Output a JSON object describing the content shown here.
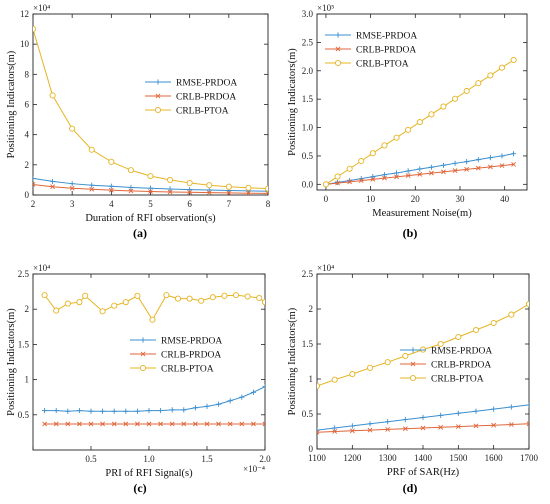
{
  "colors": {
    "rmse": "#3a8fd0",
    "crlb_prdoa": "#e0663a",
    "crlb_ptoa": "#e6b422"
  },
  "chart_data": [
    {
      "type": "line",
      "caption": "(a)",
      "xlabel": "Duration of RFI observation(s)",
      "ylabel": "Positioning Indicators(m)",
      "y_exponent_label": "×10⁴",
      "xlim": [
        2,
        8
      ],
      "ylim": [
        0,
        12
      ],
      "xticks": [
        2,
        3,
        4,
        5,
        6,
        7,
        8
      ],
      "yticks": [
        0,
        2,
        4,
        6,
        8,
        10,
        12
      ],
      "legend": "center-right",
      "series": [
        {
          "name": "RMSE-PRDOA",
          "marker": "plus",
          "color_key": "rmse",
          "x": [
            2,
            2.5,
            3,
            3.5,
            4,
            4.5,
            5,
            5.5,
            6,
            6.5,
            7,
            7.5,
            8
          ],
          "y": [
            1.1,
            0.9,
            0.75,
            0.65,
            0.58,
            0.5,
            0.45,
            0.4,
            0.36,
            0.33,
            0.3,
            0.27,
            0.25
          ]
        },
        {
          "name": "CRLB-PRDOA",
          "marker": "x",
          "color_key": "crlb_prdoa",
          "x": [
            2,
            2.5,
            3,
            3.5,
            4,
            4.5,
            5,
            5.5,
            6,
            6.5,
            7,
            7.5,
            8
          ],
          "y": [
            0.7,
            0.55,
            0.45,
            0.38,
            0.32,
            0.27,
            0.23,
            0.2,
            0.18,
            0.16,
            0.14,
            0.12,
            0.11
          ]
        },
        {
          "name": "CRLB-PTOA",
          "marker": "circle",
          "color_key": "crlb_ptoa",
          "x": [
            2,
            2.5,
            3,
            3.5,
            4,
            4.5,
            5,
            5.5,
            6,
            6.5,
            7,
            7.5,
            8
          ],
          "y": [
            11.0,
            6.6,
            4.4,
            3.0,
            2.2,
            1.65,
            1.25,
            1.0,
            0.8,
            0.65,
            0.55,
            0.48,
            0.42
          ]
        }
      ]
    },
    {
      "type": "line",
      "caption": "(b)",
      "xlabel": "Measurement Noise(m)",
      "ylabel": "Positioning Indicators(m)",
      "y_exponent_label": "×10⁵",
      "xlim": [
        -2,
        45
      ],
      "ylim": [
        -0.1,
        3.0
      ],
      "xticks": [
        0,
        10,
        20,
        30,
        40
      ],
      "yticks": [
        0,
        0.5,
        1,
        1.5,
        2,
        2.5,
        3
      ],
      "ytick_labels": [
        "0.0",
        "0.5",
        "1.0",
        "1.5",
        "2.0",
        "2.5",
        "3.0"
      ],
      "legend": "top-left",
      "series": [
        {
          "name": "RMSE-PRDOA",
          "marker": "plus",
          "color_key": "rmse",
          "x": [
            0,
            2.6,
            5.3,
            7.9,
            10.5,
            13.1,
            15.8,
            18.4,
            21,
            23.6,
            26.3,
            28.9,
            31.5,
            34.1,
            36.8,
            39.4,
            42
          ],
          "y": [
            0,
            0.033,
            0.067,
            0.1,
            0.135,
            0.17,
            0.2,
            0.235,
            0.27,
            0.3,
            0.335,
            0.37,
            0.4,
            0.435,
            0.47,
            0.5,
            0.54
          ]
        },
        {
          "name": "CRLB-PRDOA",
          "marker": "x",
          "color_key": "crlb_prdoa",
          "x": [
            0,
            2.6,
            5.3,
            7.9,
            10.5,
            13.1,
            15.8,
            18.4,
            21,
            23.6,
            26.3,
            28.9,
            31.5,
            34.1,
            36.8,
            39.4,
            42
          ],
          "y": [
            0,
            0.022,
            0.044,
            0.066,
            0.088,
            0.11,
            0.132,
            0.154,
            0.176,
            0.198,
            0.22,
            0.242,
            0.264,
            0.286,
            0.308,
            0.33,
            0.352
          ]
        },
        {
          "name": "CRLB-PTOA",
          "marker": "circle",
          "color_key": "crlb_ptoa",
          "x": [
            0,
            2.6,
            5.3,
            7.9,
            10.5,
            13.1,
            15.8,
            18.4,
            21,
            23.6,
            26.3,
            28.9,
            31.5,
            34.1,
            36.8,
            39.4,
            42
          ],
          "y": [
            0,
            0.137,
            0.274,
            0.411,
            0.548,
            0.685,
            0.822,
            0.959,
            1.096,
            1.233,
            1.37,
            1.507,
            1.644,
            1.781,
            1.918,
            2.055,
            2.19
          ]
        }
      ]
    },
    {
      "type": "line",
      "caption": "(c)",
      "xlabel": "PRI of RFI Signal(s)",
      "ylabel": "Positioning Indicators(m)",
      "y_exponent_label": "×10⁴",
      "x_exponent_label": "×10⁻⁴",
      "xlim": [
        0,
        2.0
      ],
      "ylim": [
        0,
        2.5
      ],
      "xticks": [
        0,
        0.5,
        1.0,
        1.5,
        2.0
      ],
      "xtick_labels": [
        "",
        "0.5",
        "1.0",
        "1.5",
        "2.0"
      ],
      "yticks": [
        0.5,
        1,
        1.5,
        2,
        2.5
      ],
      "ytick_labels": [
        "0.5",
        "1",
        "1.5",
        "2",
        "2.5"
      ],
      "legend": "center-right",
      "series": [
        {
          "name": "RMSE-PRDOA",
          "marker": "plus",
          "color_key": "rmse",
          "x": [
            0.1,
            0.2,
            0.3,
            0.4,
            0.5,
            0.6,
            0.7,
            0.8,
            0.9,
            1.0,
            1.1,
            1.2,
            1.3,
            1.4,
            1.5,
            1.6,
            1.7,
            1.8,
            1.9,
            2.0
          ],
          "y": [
            0.56,
            0.56,
            0.55,
            0.56,
            0.55,
            0.55,
            0.55,
            0.55,
            0.55,
            0.56,
            0.56,
            0.57,
            0.57,
            0.6,
            0.62,
            0.65,
            0.7,
            0.75,
            0.82,
            0.9
          ]
        },
        {
          "name": "CRLB-PRDOA",
          "marker": "x",
          "color_key": "crlb_prdoa",
          "x": [
            0.1,
            0.2,
            0.3,
            0.4,
            0.5,
            0.6,
            0.7,
            0.8,
            0.9,
            1.0,
            1.1,
            1.2,
            1.3,
            1.4,
            1.5,
            1.6,
            1.7,
            1.8,
            1.9,
            2.0
          ],
          "y": [
            0.37,
            0.37,
            0.37,
            0.37,
            0.37,
            0.37,
            0.37,
            0.37,
            0.37,
            0.37,
            0.37,
            0.37,
            0.37,
            0.37,
            0.37,
            0.37,
            0.37,
            0.37,
            0.37,
            0.37
          ]
        },
        {
          "name": "CRLB-PTOA",
          "marker": "circle",
          "color_key": "crlb_ptoa",
          "x": [
            0.1,
            0.2,
            0.3,
            0.4,
            0.45,
            0.6,
            0.7,
            0.8,
            0.9,
            1.03,
            1.15,
            1.25,
            1.35,
            1.45,
            1.55,
            1.65,
            1.75,
            1.85,
            1.95,
            2.0
          ],
          "y": [
            2.2,
            1.98,
            2.08,
            2.1,
            2.19,
            1.97,
            2.05,
            2.1,
            2.19,
            1.85,
            2.2,
            2.15,
            2.15,
            2.12,
            2.17,
            2.19,
            2.2,
            2.18,
            2.16,
            2.1
          ]
        }
      ]
    },
    {
      "type": "line",
      "caption": "(d)",
      "xlabel": "PRF of SAR(Hz)",
      "ylabel": "Positioning Indicators(m)",
      "y_exponent_label": "×10⁴",
      "xlim": [
        1100,
        1700
      ],
      "ylim": [
        0,
        2.5
      ],
      "xticks": [
        1100,
        1200,
        1300,
        1400,
        1500,
        1600,
        1700
      ],
      "yticks": [
        0,
        0.5,
        1,
        1.5,
        2,
        2.5
      ],
      "ytick_labels": [
        "0",
        "0.5",
        "1",
        "1.5",
        "2",
        "2.5"
      ],
      "legend": "center-right",
      "series": [
        {
          "name": "RMSE-PRDOA",
          "marker": "plus",
          "color_key": "rmse",
          "x": [
            1100,
            1150,
            1200,
            1250,
            1300,
            1350,
            1400,
            1450,
            1500,
            1550,
            1600,
            1650,
            1700
          ],
          "y": [
            0.27,
            0.3,
            0.33,
            0.36,
            0.39,
            0.42,
            0.45,
            0.48,
            0.51,
            0.54,
            0.57,
            0.6,
            0.63
          ]
        },
        {
          "name": "CRLB-PRDOA",
          "marker": "x",
          "color_key": "crlb_prdoa",
          "x": [
            1100,
            1150,
            1200,
            1250,
            1300,
            1350,
            1400,
            1450,
            1500,
            1550,
            1600,
            1650,
            1700
          ],
          "y": [
            0.24,
            0.25,
            0.26,
            0.27,
            0.28,
            0.29,
            0.3,
            0.31,
            0.32,
            0.33,
            0.34,
            0.35,
            0.36
          ]
        },
        {
          "name": "CRLB-PTOA",
          "marker": "circle",
          "color_key": "crlb_ptoa",
          "x": [
            1100,
            1150,
            1200,
            1250,
            1300,
            1350,
            1400,
            1450,
            1500,
            1550,
            1600,
            1650,
            1700
          ],
          "y": [
            0.9,
            0.99,
            1.07,
            1.16,
            1.24,
            1.33,
            1.42,
            1.5,
            1.6,
            1.7,
            1.8,
            1.92,
            2.07
          ]
        }
      ]
    }
  ]
}
